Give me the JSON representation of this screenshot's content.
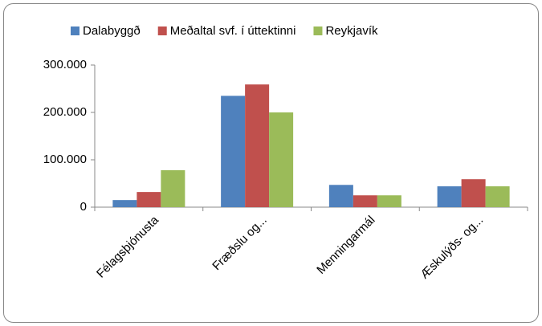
{
  "chart_data": {
    "type": "bar",
    "categories": [
      "Félagsþjónusta",
      "Fræðslu og...",
      "Menningarmál",
      "Æskulýðs- og..."
    ],
    "series": [
      {
        "name": "Dalabyggð",
        "color": "#4f81bd",
        "values": [
          15000,
          235000,
          47000,
          44000
        ]
      },
      {
        "name": "Meðaltal svf. í úttektinni",
        "color": "#c0504d",
        "values": [
          32000,
          259000,
          25000,
          59000
        ]
      },
      {
        "name": "Reykjavík",
        "color": "#9bbb59",
        "values": [
          78000,
          200000,
          25000,
          44000
        ]
      }
    ],
    "ylim": [
      0,
      300000
    ],
    "yticks": [
      0,
      {
        "value": 100000,
        "label": "100.000"
      },
      {
        "value": 200000,
        "label": "200.000"
      },
      {
        "value": 300000,
        "label": "300.000"
      }
    ],
    "grid": false,
    "legend": "top"
  }
}
